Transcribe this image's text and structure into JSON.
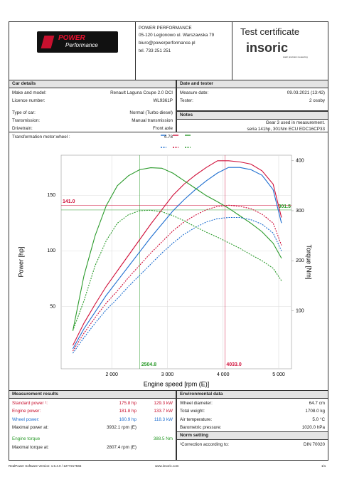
{
  "header": {
    "logo": [
      "POWER",
      "Performance"
    ],
    "company": [
      "POWER PERFORMANCE",
      "05-120 Legionowo ul. Warszawska 79",
      "biuro@powerperformance.pl",
      "tel. 733 251 251"
    ],
    "title": "Test certificate",
    "brand": "insoric",
    "brand_tag": "static precision measuring"
  },
  "car_details": {
    "heading": "Car details",
    "rows": [
      [
        "Make and model:",
        "Renault Laguna Coupe 2.0 DCI"
      ],
      [
        "Licence number:",
        "WL9361P"
      ],
      [
        "Type of car:",
        "Normal (Turbo diesel)"
      ],
      [
        "Transmission:",
        "Manual transmission"
      ],
      [
        "Drivetrain:",
        "Front axle"
      ],
      [
        "Transformation motor:wheel :",
        "4.78"
      ]
    ]
  },
  "date_tester": {
    "heading": "Date and tester",
    "rows": [
      [
        "Measure date:",
        "09.03.2021 (13:42)"
      ],
      [
        "Tester:",
        "2 osoby"
      ]
    ]
  },
  "notes": {
    "heading": "Notes",
    "lines": [
      "Gear 3 used in measurement.",
      "seria 141hp, 301Nm ECU EDC16CP33"
    ]
  },
  "chart_data": {
    "type": "line",
    "x_label": "Engine speed [rpm (E)]",
    "y_label": "Power [hp]",
    "y2_label": "Torque [Nm]",
    "x": [
      1300,
      1500,
      1700,
      1900,
      2100,
      2300,
      2500,
      2700,
      2900,
      3100,
      3300,
      3500,
      3700,
      3900,
      4100,
      4300,
      4500,
      4700,
      4900,
      5050
    ],
    "xlim": [
      1090,
      5230
    ],
    "xticks": [
      {
        "value": 2000,
        "label": "2 000"
      },
      {
        "value": 3000,
        "label": "3 000"
      },
      {
        "value": 4000,
        "label": "4 000"
      },
      {
        "value": 5000,
        "label": "5 000"
      }
    ],
    "ylim": [
      -6,
      186
    ],
    "yticks": [
      50,
      100,
      150
    ],
    "y2lim": [
      -16,
      411
    ],
    "y2ticks": [
      100,
      200,
      300,
      400
    ],
    "grid": true,
    "series": [
      {
        "color": "#1f6fd0",
        "dash": false,
        "values": [
          12,
          30,
          45,
          60,
          73,
          86,
          99,
          112,
          124,
          136,
          146,
          155,
          163,
          170,
          175,
          175,
          173,
          168,
          155,
          125
        ]
      },
      {
        "color": "#d0103a",
        "dash": false,
        "values": [
          15,
          35,
          52,
          68,
          82,
          96,
          110,
          124,
          137,
          150,
          160,
          168,
          175,
          181,
          181,
          180,
          178,
          172,
          160,
          130
        ]
      },
      {
        "color": "#2a9a2a",
        "dash": false,
        "axis": "y2",
        "values": [
          60,
          170,
          250,
          310,
          350,
          370,
          382,
          386,
          385,
          375,
          360,
          345,
          330,
          318,
          305,
          290,
          275,
          258,
          235,
          205
        ]
      },
      {
        "color": "#1f6fd0",
        "dash": true,
        "values": [
          8,
          22,
          35,
          47,
          57,
          68,
          78,
          88,
          98,
          107,
          115,
          121,
          126,
          129,
          130,
          130,
          128,
          124,
          116,
          100
        ]
      },
      {
        "color": "#d0103a",
        "dash": true,
        "values": [
          10,
          26,
          40,
          53,
          64,
          76,
          87,
          98,
          108,
          118,
          126,
          132,
          137,
          140,
          141,
          140,
          138,
          133,
          125,
          105
        ]
      },
      {
        "color": "#2a9a2a",
        "dash": true,
        "axis": "y2",
        "values": [
          60,
          120,
          190,
          240,
          275,
          292,
          300,
          301,
          298,
          290,
          280,
          268,
          257,
          247,
          236,
          225,
          212,
          200,
          185,
          160
        ]
      }
    ],
    "hlines": [
      {
        "value": 141,
        "label": "141.0",
        "color": "#d0103a"
      },
      {
        "value": 301.5,
        "label": "301.5",
        "color": "#2a9a2a",
        "axis": "y2"
      }
    ],
    "vlines": [
      {
        "value": 2504.8,
        "label": "2504.8",
        "color": "#2a9a2a"
      },
      {
        "value": 4033,
        "label": "4033.0",
        "color": "#d0103a"
      }
    ]
  },
  "measurement_results": {
    "heading": "Measurement results",
    "rows": [
      [
        "Standard power ¹:",
        "175.8 hp",
        "129.3 kW"
      ],
      [
        "Engine power:",
        "181.8 hp",
        "133.7 kW"
      ],
      [
        "Wheel power:",
        "160.9 hp",
        "118.3 kW"
      ],
      [
        "Maximal power at:",
        "3932.1 rpm (E)"
      ],
      [
        "Engine torque",
        "388.5 Nm"
      ],
      [
        "Maximal torque at:",
        "2807.4 rpm (E)"
      ]
    ]
  },
  "environmental": {
    "heading": "Environmental data",
    "rows": [
      [
        "Wheel diameter:",
        "64.7 cm"
      ],
      [
        "Total weight:",
        "1708.0 kg"
      ],
      [
        "Air temperature:",
        "5.0 °C"
      ],
      [
        "Barometric pressure:",
        "1020.0 hPa"
      ]
    ]
  },
  "norm": {
    "heading": "Norm setting",
    "rows": [
      [
        "¹Correction according to:",
        "DIN 70020"
      ]
    ]
  },
  "footer": [
    "RealPower Software Version: 1.5.4.0 / 1277217566",
    "www.insoric.com",
    "1/1"
  ]
}
